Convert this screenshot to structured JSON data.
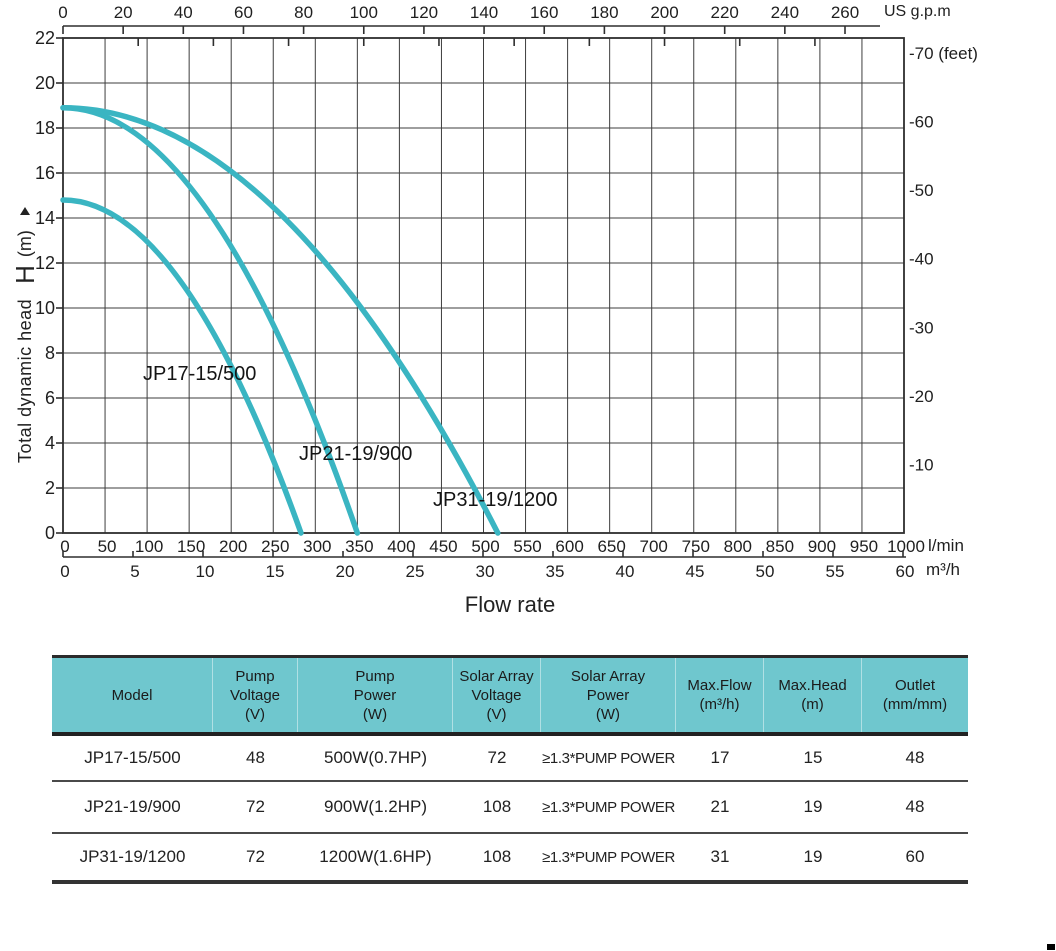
{
  "chart_data": {
    "type": "line",
    "title": "",
    "xlabel": "Flow rate",
    "ylabel": "Total dynamic head",
    "ylabel_symbol": "H",
    "ylabel_unit": "(m)",
    "grid": true,
    "curve_color": "#3ab5c2",
    "axes": {
      "top": {
        "unit": "US g.p.m",
        "range": [
          0,
          260
        ],
        "ticks": [
          0,
          20,
          40,
          60,
          80,
          100,
          120,
          140,
          160,
          180,
          200,
          220,
          240,
          260
        ]
      },
      "left": {
        "unit": "H (m)",
        "range": [
          0,
          22
        ],
        "ticks": [
          22,
          20,
          18,
          16,
          14,
          12,
          10,
          8,
          6,
          4,
          2,
          0
        ]
      },
      "right": {
        "unit": "feet",
        "labels": [
          {
            "feet": 70,
            "text": "-70 (feet)"
          },
          {
            "feet": 60,
            "text": "-60"
          },
          {
            "feet": 50,
            "text": "-50"
          },
          {
            "feet": 40,
            "text": "-40"
          },
          {
            "feet": 30,
            "text": "-30"
          },
          {
            "feet": 20,
            "text": "-20"
          },
          {
            "feet": 10,
            "text": "-10"
          }
        ]
      },
      "bottom_lmin": {
        "unit": "l/min",
        "range": [
          0,
          1000
        ],
        "ticks": [
          0,
          50,
          100,
          150,
          200,
          250,
          300,
          350,
          400,
          450,
          500,
          550,
          600,
          650,
          700,
          750,
          800,
          850,
          900,
          950,
          1000
        ]
      },
      "bottom_m3h": {
        "unit": "m³/h",
        "range": [
          0,
          60
        ],
        "ticks": [
          0,
          5,
          10,
          15,
          20,
          25,
          30,
          35,
          40,
          45,
          50,
          55,
          60
        ]
      }
    },
    "series": [
      {
        "name": "JP17-15/500",
        "shutoff_head_m": 14.8,
        "max_flow_lmin": 283,
        "points_lmin_head_m": [
          [
            0,
            14.8
          ],
          [
            50,
            14.3
          ],
          [
            100,
            13.0
          ],
          [
            150,
            10.6
          ],
          [
            200,
            7.4
          ],
          [
            250,
            3.2
          ],
          [
            283,
            0
          ]
        ]
      },
      {
        "name": "JP21-19/900",
        "shutoff_head_m": 18.9,
        "max_flow_lmin": 350,
        "points_lmin_head_m": [
          [
            0,
            18.9
          ],
          [
            50,
            18.5
          ],
          [
            100,
            17.4
          ],
          [
            150,
            15.4
          ],
          [
            200,
            12.7
          ],
          [
            250,
            9.2
          ],
          [
            300,
            5.0
          ],
          [
            350,
            0
          ]
        ]
      },
      {
        "name": "JP31-19/1200",
        "shutoff_head_m": 18.9,
        "max_flow_lmin": 517,
        "points_lmin_head_m": [
          [
            0,
            18.9
          ],
          [
            100,
            18.2
          ],
          [
            200,
            16.1
          ],
          [
            300,
            12.5
          ],
          [
            400,
            7.6
          ],
          [
            500,
            1.2
          ],
          [
            517,
            0
          ]
        ]
      }
    ]
  },
  "table": {
    "header_bg": "#6fc7ce",
    "columns": [
      "Model",
      "Pump\nVoltage\n(V)",
      "Pump\nPower\n(W)",
      "Solar Array\nVoltage\n(V)",
      "Solar Array\nPower\n(W)",
      "Max.Flow\n(m³/h)",
      "Max.Head\n(m)",
      "Outlet\n(mm/mm)"
    ],
    "rows": [
      [
        "JP17-15/500",
        "48",
        "500W(0.7HP)",
        "72",
        "≥1.3*PUMP POWER",
        "17",
        "15",
        "48"
      ],
      [
        "JP21-19/900",
        "72",
        "900W(1.2HP)",
        "108",
        "≥1.3*PUMP POWER",
        "21",
        "19",
        "48"
      ],
      [
        "JP31-19/1200",
        "72",
        "1200W(1.6HP)",
        "108",
        "≥1.3*PUMP POWER",
        "31",
        "19",
        "60"
      ]
    ]
  }
}
